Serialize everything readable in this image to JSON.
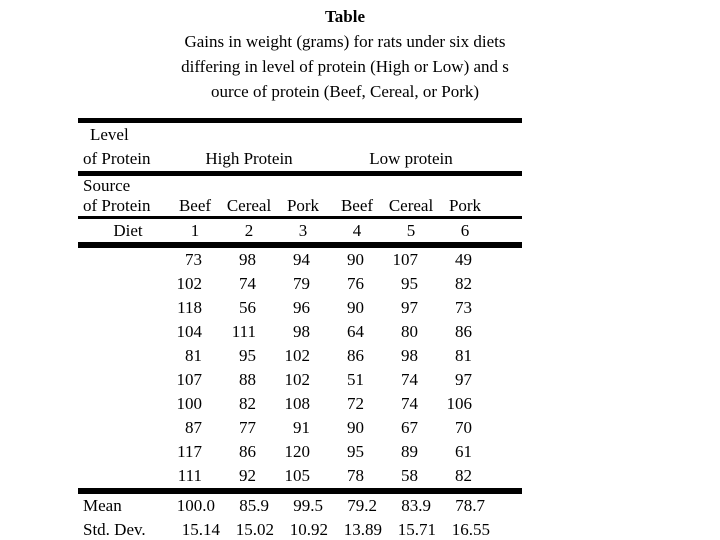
{
  "title": {
    "line1": "Table",
    "line2": "Gains in weight (grams) for rats under six diets",
    "line3": "differing in level of protein (High or Low) and s",
    "line4": "ource of protein (Beef, Cereal, or Pork)"
  },
  "table": {
    "level_row": {
      "line1": "Level",
      "line2": "of Protein",
      "high": "High Protein",
      "low": "Low protein"
    },
    "source_row": {
      "line1": "Source",
      "line2": "of Protein",
      "cols": [
        "Beef",
        "Cereal",
        "Pork",
        "Beef",
        "Cereal",
        "Pork"
      ]
    },
    "diet_row": {
      "label": "Diet",
      "cols": [
        "1",
        "2",
        "3",
        "4",
        "5",
        "6"
      ]
    },
    "rows": [
      [
        73,
        98,
        94,
        90,
        107,
        49
      ],
      [
        102,
        74,
        79,
        76,
        95,
        82
      ],
      [
        118,
        56,
        96,
        90,
        97,
        73
      ],
      [
        104,
        111,
        98,
        64,
        80,
        86
      ],
      [
        81,
        95,
        102,
        86,
        98,
        81
      ],
      [
        107,
        88,
        102,
        51,
        74,
        97
      ],
      [
        100,
        82,
        108,
        72,
        74,
        106
      ],
      [
        87,
        77,
        91,
        90,
        67,
        70
      ],
      [
        117,
        86,
        120,
        95,
        89,
        61
      ],
      [
        111,
        92,
        105,
        78,
        58,
        82
      ]
    ],
    "mean_row": {
      "label": "Mean",
      "values": [
        "100.0",
        "85.9",
        "99.5",
        "79.2",
        "83.9",
        "78.7"
      ]
    },
    "std_row": {
      "label": "Std. Dev.",
      "values": [
        "15.14",
        "15.02",
        "10.92",
        "13.89",
        "15.71",
        "16.55"
      ]
    }
  },
  "chart_data": {
    "type": "table",
    "title": "Gains in weight (grams) for rats under six diets differing in level of protein (High or Low) and source of protein (Beef, Cereal, or Pork)",
    "diets": [
      {
        "diet": 1,
        "level": "High Protein",
        "source": "Beef",
        "values": [
          73,
          102,
          118,
          104,
          81,
          107,
          100,
          87,
          117,
          111
        ],
        "mean": 100.0,
        "std_dev": 15.14
      },
      {
        "diet": 2,
        "level": "High Protein",
        "source": "Cereal",
        "values": [
          98,
          74,
          56,
          111,
          95,
          88,
          82,
          77,
          86,
          92
        ],
        "mean": 85.9,
        "std_dev": 15.02
      },
      {
        "diet": 3,
        "level": "High Protein",
        "source": "Pork",
        "values": [
          94,
          79,
          96,
          98,
          102,
          102,
          108,
          91,
          120,
          105
        ],
        "mean": 99.5,
        "std_dev": 10.92
      },
      {
        "diet": 4,
        "level": "Low protein",
        "source": "Beef",
        "values": [
          90,
          76,
          90,
          64,
          86,
          51,
          72,
          90,
          95,
          78
        ],
        "mean": 79.2,
        "std_dev": 13.89
      },
      {
        "diet": 5,
        "level": "Low protein",
        "source": "Cereal",
        "values": [
          107,
          95,
          97,
          80,
          98,
          74,
          74,
          67,
          89,
          58
        ],
        "mean": 83.9,
        "std_dev": 15.71
      },
      {
        "diet": 6,
        "level": "Low protein",
        "source": "Pork",
        "values": [
          49,
          82,
          73,
          86,
          81,
          97,
          106,
          70,
          61,
          82
        ],
        "mean": 78.7,
        "std_dev": 16.55
      }
    ]
  }
}
